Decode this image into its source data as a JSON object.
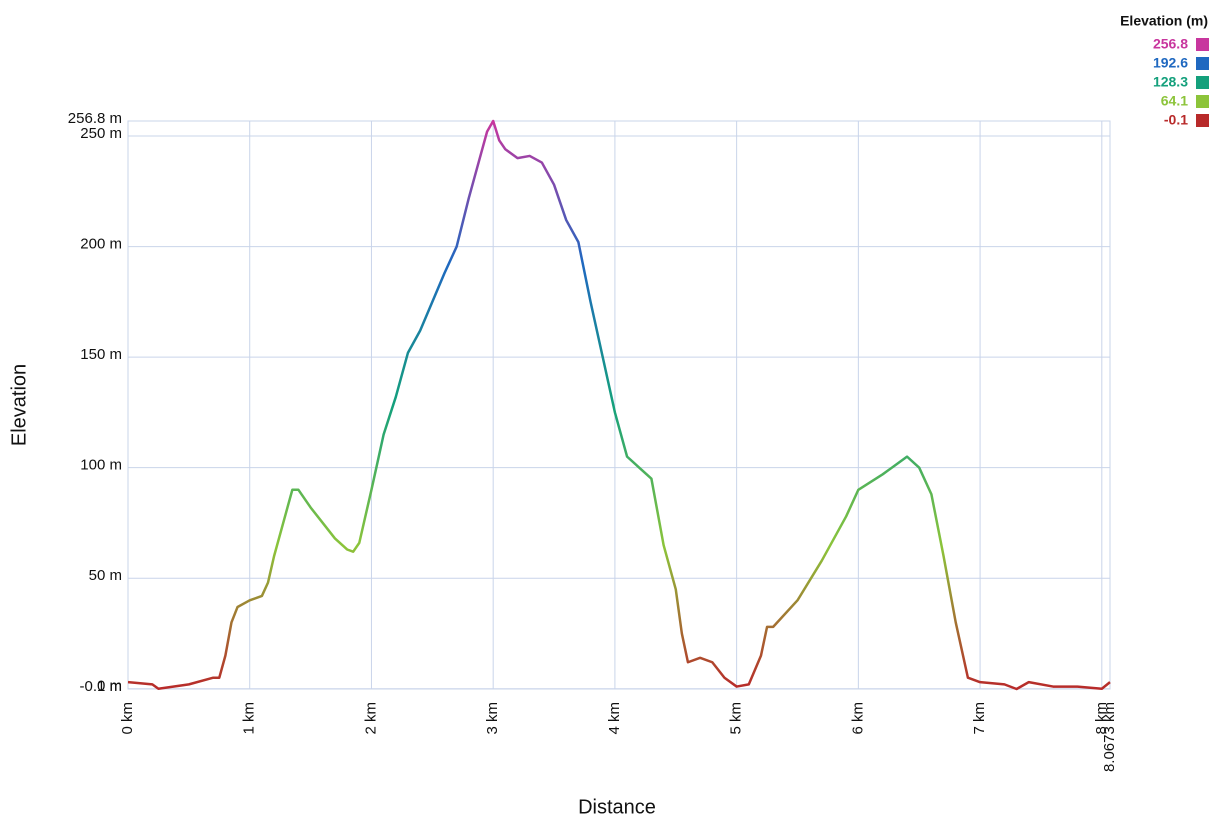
{
  "chart_data": {
    "type": "line",
    "x_label": "Distance",
    "y_label": "Elevation",
    "x": [
      0,
      0.2,
      0.25,
      0.5,
      0.7,
      0.75,
      0.8,
      0.85,
      0.9,
      1.0,
      1.1,
      1.15,
      1.2,
      1.3,
      1.35,
      1.4,
      1.5,
      1.6,
      1.7,
      1.8,
      1.85,
      1.9,
      2.0,
      2.1,
      2.2,
      2.3,
      2.4,
      2.5,
      2.6,
      2.7,
      2.8,
      2.9,
      2.95,
      3.0,
      3.05,
      3.1,
      3.2,
      3.3,
      3.4,
      3.5,
      3.6,
      3.7,
      3.8,
      3.9,
      4.0,
      4.1,
      4.2,
      4.3,
      4.35,
      4.4,
      4.5,
      4.55,
      4.6,
      4.7,
      4.8,
      4.9,
      5.0,
      5.1,
      5.2,
      5.25,
      5.3,
      5.5,
      5.7,
      5.9,
      6.0,
      6.2,
      6.3,
      6.4,
      6.5,
      6.6,
      6.7,
      6.8,
      6.9,
      7.0,
      7.2,
      7.3,
      7.4,
      7.6,
      7.8,
      8.0,
      8.0673
    ],
    "values": [
      3,
      2,
      0,
      2,
      5,
      5,
      15,
      30,
      37,
      40,
      42,
      48,
      60,
      80,
      90,
      90,
      82,
      75,
      68,
      63,
      62,
      66,
      90,
      115,
      132,
      152,
      162,
      175,
      188,
      200,
      222,
      242,
      252,
      256.8,
      248,
      244,
      240,
      241,
      238,
      228,
      212,
      202,
      175,
      150,
      125,
      105,
      100,
      95,
      80,
      65,
      45,
      25,
      12,
      14,
      12,
      5,
      1,
      2,
      15,
      28,
      28,
      40,
      58,
      78,
      90,
      97,
      101,
      105,
      100,
      88,
      60,
      30,
      5,
      3,
      2,
      -0.1,
      3,
      1,
      1,
      0,
      3
    ],
    "xlim": [
      0,
      8.0673
    ],
    "ylim": [
      -0.1,
      256.8
    ],
    "xticks": [
      {
        "value": 0,
        "label": "0 km"
      },
      {
        "value": 1,
        "label": "1 km"
      },
      {
        "value": 2,
        "label": "2 km"
      },
      {
        "value": 3,
        "label": "3 km"
      },
      {
        "value": 4,
        "label": "4 km"
      },
      {
        "value": 5,
        "label": "5 km"
      },
      {
        "value": 6,
        "label": "6 km"
      },
      {
        "value": 7,
        "label": "7 km"
      },
      {
        "value": 8,
        "label": "8 km"
      },
      {
        "value": 8.0673,
        "label": "8.0673 km"
      }
    ],
    "yticks": [
      {
        "value": -0.1,
        "label": "-0.1 m"
      },
      {
        "value": 0,
        "label": "0 m"
      },
      {
        "value": 50,
        "label": "50 m"
      },
      {
        "value": 100,
        "label": "100 m"
      },
      {
        "value": 150,
        "label": "150 m"
      },
      {
        "value": 200,
        "label": "200 m"
      },
      {
        "value": 250,
        "label": "250 m"
      },
      {
        "value": 256.8,
        "label": "256.8 m"
      }
    ],
    "grid": true,
    "legend": {
      "title": "Elevation (m)",
      "entries": [
        {
          "value": 256.8,
          "color": "#c8369e"
        },
        {
          "value": 192.6,
          "color": "#1f68c0"
        },
        {
          "value": 128.3,
          "color": "#14a07c"
        },
        {
          "value": 64.1,
          "color": "#8cc43a"
        },
        {
          "value": -0.1,
          "color": "#b82a2a"
        }
      ]
    }
  }
}
